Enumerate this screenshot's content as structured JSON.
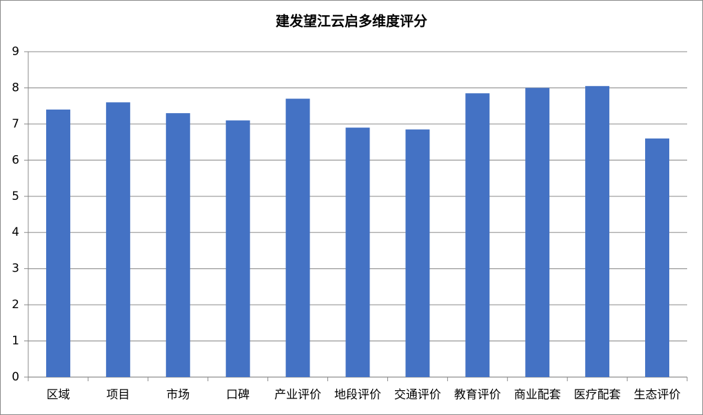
{
  "chart_data": {
    "type": "bar",
    "title": "建发望江云启多维度评分",
    "categories": [
      "区域",
      "项目",
      "市场",
      "口碑",
      "产业评价",
      "地段评价",
      "交通评价",
      "教育评价",
      "商业配套",
      "医疗配套",
      "生态评价"
    ],
    "values": [
      7.4,
      7.6,
      7.3,
      7.1,
      7.7,
      6.9,
      6.85,
      7.85,
      8.0,
      8.05,
      6.6
    ],
    "color": "#4472c4",
    "ylim": [
      0,
      9
    ],
    "yticks": [
      0,
      1,
      2,
      3,
      4,
      5,
      6,
      7,
      8,
      9
    ],
    "grid": true
  }
}
